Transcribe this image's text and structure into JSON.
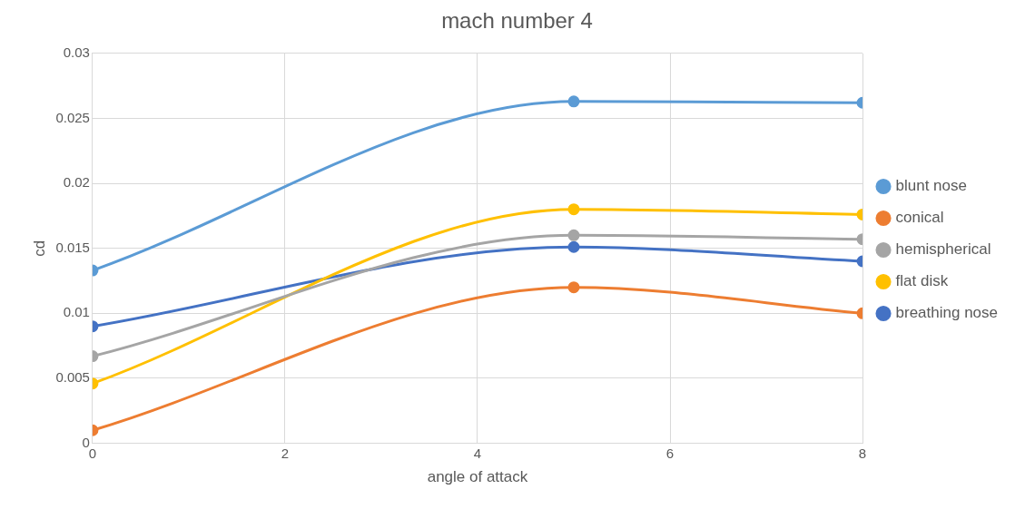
{
  "chart_data": {
    "type": "line",
    "title": "mach number 4",
    "xlabel": "angle of attack",
    "ylabel": "cd",
    "x": [
      0,
      5,
      8
    ],
    "series": [
      {
        "name": "blunt nose",
        "color": "#5b9bd5",
        "values": [
          0.0133,
          0.0263,
          0.0262
        ]
      },
      {
        "name": "conical",
        "color": "#ed7d31",
        "values": [
          0.001,
          0.012,
          0.01
        ]
      },
      {
        "name": "hemispherical",
        "color": "#a5a5a5",
        "values": [
          0.0067,
          0.016,
          0.0157
        ]
      },
      {
        "name": "flat disk",
        "color": "#ffc000",
        "values": [
          0.0046,
          0.018,
          0.0176
        ]
      },
      {
        "name": "breathing nose",
        "color": "#4472c4",
        "values": [
          0.009,
          0.0151,
          0.014
        ]
      }
    ],
    "xlim": [
      0,
      8
    ],
    "xticks": [
      0,
      2,
      4,
      6,
      8
    ],
    "ylim": [
      0,
      0.03
    ],
    "yticks": [
      0,
      0.005,
      0.01,
      0.015,
      0.02,
      0.025,
      0.03
    ],
    "grid": true,
    "legend": "right",
    "marker": "circle",
    "line_style": "solid"
  }
}
